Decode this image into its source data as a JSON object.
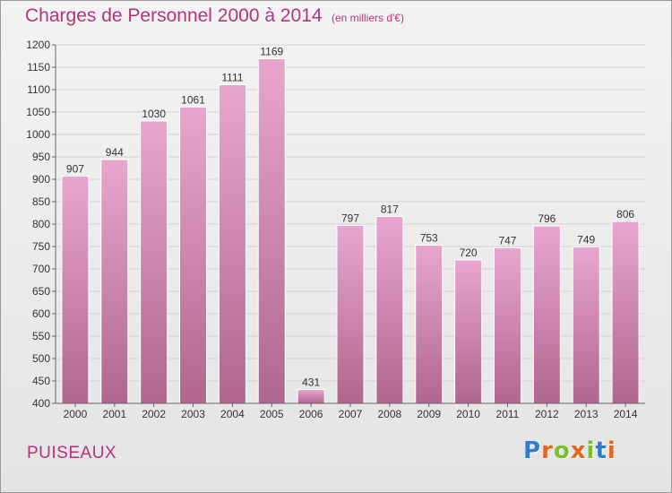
{
  "header": {
    "title": "Charges de Personnel 2000 à 2014",
    "subtitle": "(en milliers d'€)"
  },
  "footer": {
    "commune": "PUISEAUX",
    "logo_text": "Proxiti",
    "logo_colors": [
      "#2f7fd1",
      "#e8651c",
      "#7dbf2a",
      "#e8651c",
      "#7dbf2a",
      "#2f7fd1",
      "#e8651c"
    ]
  },
  "chart_data": {
    "type": "bar",
    "categories": [
      "2000",
      "2001",
      "2002",
      "2003",
      "2004",
      "2005",
      "2006",
      "2007",
      "2008",
      "2009",
      "2010",
      "2011",
      "2012",
      "2013",
      "2014"
    ],
    "values": [
      907,
      944,
      1030,
      1061,
      1111,
      1169,
      431,
      797,
      817,
      753,
      720,
      747,
      796,
      749,
      806
    ],
    "ylim": [
      400,
      1200
    ],
    "yticks": [
      400,
      450,
      500,
      550,
      600,
      650,
      700,
      750,
      800,
      850,
      900,
      950,
      1000,
      1050,
      1100,
      1150,
      1200
    ],
    "grid": true,
    "bar_color_top": "#e8a6cf",
    "bar_color_bottom": "#b0668f"
  }
}
